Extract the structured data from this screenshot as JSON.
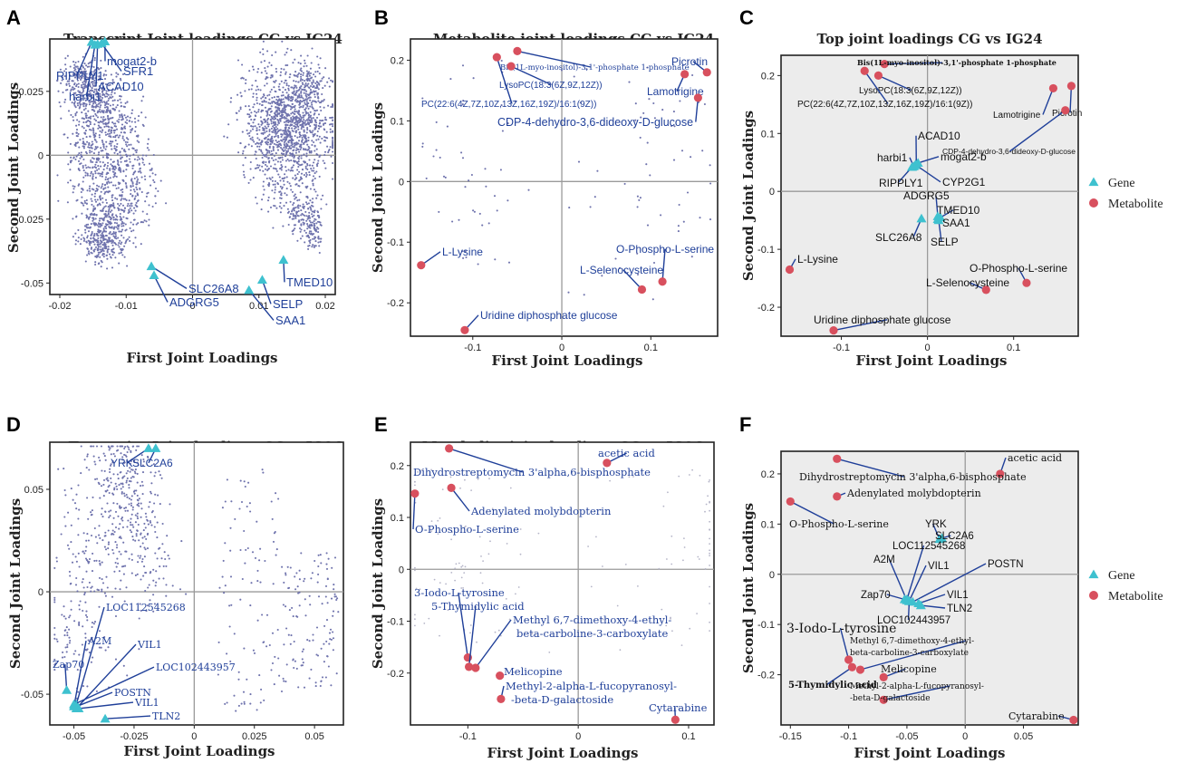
{
  "colors": {
    "gene": "#3ec1cf",
    "metabolite": "#d8505e",
    "scatter": "#6f73ad",
    "faint": "#b5b5c8",
    "leader": "#1f3f99",
    "panel_bg_top": "#ececec",
    "zero_line": "#9a9a9a"
  },
  "legend": {
    "gene": "Gene",
    "metabolite": "Metabolite"
  },
  "chart_data": [
    {
      "letter": "A",
      "type": "scatter",
      "title": "Transcript Joint loadings CG vs IG24",
      "xlabel": "First Joint Loadings",
      "ylabel": "Second Joint Loadings",
      "xlim": [
        -0.0215,
        0.0215
      ],
      "ylim": [
        -0.0545,
        0.0455
      ],
      "xticks": [
        -0.02,
        -0.01,
        0,
        0.01,
        0.02
      ],
      "xtick_labels": [
        "-0.02",
        "-0.01",
        "0",
        "0.01",
        "0.02"
      ],
      "yticks": [
        -0.05,
        -0.025,
        0,
        0.025
      ],
      "ytick_labels": [
        "-0.05",
        "-0.025",
        "0",
        "0.025"
      ],
      "background_cloud": {
        "count": 3200,
        "description": "two crescent clusters of gene loadings"
      },
      "highlights": [
        {
          "label": "mogat2-b",
          "kind": "gene",
          "x": -0.0132,
          "y": 0.0445
        },
        {
          "label": "SFR1",
          "kind": "gene",
          "x": -0.0137,
          "y": 0.0438
        },
        {
          "label": "RIPPLY1",
          "kind": "gene",
          "x": -0.0152,
          "y": 0.0443
        },
        {
          "label": "ACAD10",
          "kind": "gene",
          "x": -0.0143,
          "y": 0.0435
        },
        {
          "label": "harbi1",
          "kind": "gene",
          "x": -0.0147,
          "y": 0.0432
        },
        {
          "label": "SLC26A8",
          "kind": "gene",
          "x": -0.0062,
          "y": -0.0435
        },
        {
          "label": "ADGRG5",
          "kind": "gene",
          "x": -0.0058,
          "y": -0.047
        },
        {
          "label": "TMED10",
          "kind": "gene",
          "x": 0.0137,
          "y": -0.041
        },
        {
          "label": "SELP",
          "kind": "gene",
          "x": 0.0105,
          "y": -0.0488
        },
        {
          "label": "SAA1",
          "kind": "gene",
          "x": 0.0085,
          "y": -0.0528
        }
      ]
    },
    {
      "letter": "B",
      "type": "scatter",
      "title": "Metabolite joint loadings CG vs IG24",
      "xlabel": "First Joint Loadings",
      "ylabel": "Second Joint Loadings",
      "xlim": [
        -0.17,
        0.175
      ],
      "ylim": [
        -0.255,
        0.235
      ],
      "xticks": [
        -0.1,
        0,
        0.1
      ],
      "xtick_labels": [
        "-0.1",
        "0",
        "0.1"
      ],
      "yticks": [
        -0.2,
        -0.1,
        0,
        0.1,
        0.2
      ],
      "ytick_labels": [
        "-0.2",
        "-0.1",
        "0",
        "0.1",
        "0.2"
      ],
      "background_cloud": {
        "count": 110,
        "description": "sparse metabolite loadings"
      },
      "highlights": [
        {
          "label": "Bis(1L-myo-inositol)-3,1'-phosphate 1-phosphate",
          "kind": "metabolite",
          "x": -0.05,
          "y": 0.215
        },
        {
          "label": "LysoPC(18:3(6Z,9Z,12Z))",
          "kind": "metabolite",
          "x": -0.057,
          "y": 0.19
        },
        {
          "label": "PC(22:6(4Z,7Z,10Z,13Z,16Z,19Z)/16:1(9Z))",
          "kind": "metabolite",
          "x": -0.073,
          "y": 0.205
        },
        {
          "label": "Picrotin",
          "kind": "metabolite",
          "x": 0.163,
          "y": 0.18
        },
        {
          "label": "Lamotrigine",
          "kind": "metabolite",
          "x": 0.138,
          "y": 0.177
        },
        {
          "label": "CDP-4-dehydro-3,6-dideoxy-D-glucose",
          "kind": "metabolite",
          "x": 0.153,
          "y": 0.138
        },
        {
          "label": "L-Lysine",
          "kind": "metabolite",
          "x": -0.158,
          "y": -0.138
        },
        {
          "label": "O-Phospho-L-serine",
          "kind": "metabolite",
          "x": 0.113,
          "y": -0.165
        },
        {
          "label": "L-Selenocysteine",
          "kind": "metabolite",
          "x": 0.09,
          "y": -0.178
        },
        {
          "label": "Uridine diphosphate glucose",
          "kind": "metabolite",
          "x": -0.109,
          "y": -0.245
        }
      ]
    },
    {
      "letter": "C",
      "type": "scatter",
      "title": "Top joint loadings CG vs IG24",
      "xlabel": "First Joint Loadings",
      "ylabel": "Second Joint Loadings",
      "xlim": [
        -0.17,
        0.175
      ],
      "ylim": [
        -0.25,
        0.235
      ],
      "xticks": [
        -0.1,
        0,
        0.1
      ],
      "xtick_labels": [
        "-0.1",
        "0",
        "0.1"
      ],
      "yticks": [
        -0.2,
        -0.1,
        0,
        0.1,
        0.2
      ],
      "ytick_labels": [
        "-0.2",
        "-0.1",
        "0",
        "0.1",
        "0.2"
      ],
      "highlights": [
        {
          "label": "Bis(1L-myo-inositol)-3,1'-phosphate 1-phosphate",
          "kind": "metabolite",
          "x": -0.05,
          "y": 0.22
        },
        {
          "label": "LysoPC(18:3(6Z,9Z,12Z))",
          "kind": "metabolite",
          "x": -0.057,
          "y": 0.2
        },
        {
          "label": "PC(22:6(4Z,7Z,10Z,13Z,16Z,19Z)/16:1(9Z))",
          "kind": "metabolite",
          "x": -0.073,
          "y": 0.208
        },
        {
          "label": "Lamotrigine",
          "kind": "metabolite",
          "x": 0.146,
          "y": 0.178
        },
        {
          "label": "Picrotin",
          "kind": "metabolite",
          "x": 0.167,
          "y": 0.182
        },
        {
          "label": "CDP-4-dehydro-3,6-dideoxy-D-glucose",
          "kind": "metabolite",
          "x": 0.16,
          "y": 0.14
        },
        {
          "label": "ACAD10",
          "kind": "gene",
          "x": -0.013,
          "y": 0.045
        },
        {
          "label": "mogat2-b",
          "kind": "gene",
          "x": -0.011,
          "y": 0.049
        },
        {
          "label": "harbi1",
          "kind": "gene",
          "x": -0.016,
          "y": 0.043
        },
        {
          "label": "CYP2G1",
          "kind": "gene",
          "x": -0.014,
          "y": 0.046
        },
        {
          "label": "RIPPLY1",
          "kind": "gene",
          "x": -0.018,
          "y": 0.042
        },
        {
          "label": "ADGRG5",
          "kind": "gene",
          "x": 0.012,
          "y": -0.043
        },
        {
          "label": "TMED10",
          "kind": "gene",
          "x": 0.015,
          "y": -0.045
        },
        {
          "label": "SAA1",
          "kind": "gene",
          "x": 0.012,
          "y": -0.048
        },
        {
          "label": "SLC26A8",
          "kind": "gene",
          "x": -0.007,
          "y": -0.047
        },
        {
          "label": "SELP",
          "kind": "gene",
          "x": 0.013,
          "y": -0.05
        },
        {
          "label": "L-Lysine",
          "kind": "metabolite",
          "x": -0.16,
          "y": -0.135
        },
        {
          "label": "O-Phospho-L-serine",
          "kind": "metabolite",
          "x": 0.115,
          "y": -0.158
        },
        {
          "label": "L-Selenocysteine",
          "kind": "metabolite",
          "x": 0.068,
          "y": -0.17
        },
        {
          "label": "Uridine diphosphate glucose",
          "kind": "metabolite",
          "x": -0.109,
          "y": -0.24
        }
      ]
    },
    {
      "letter": "D",
      "type": "scatter",
      "title": "Transcript Joint loadings CGvs IG96",
      "xlabel": "First Joint Loadings",
      "ylabel": "Second Joint Loadings",
      "xlim": [
        -0.06,
        0.062
      ],
      "ylim": [
        -0.065,
        0.073
      ],
      "xticks": [
        -0.05,
        -0.025,
        0,
        0.025,
        0.05
      ],
      "xtick_labels": [
        "-0.05",
        "-0.025",
        "0",
        "0.025",
        "0.05"
      ],
      "yticks": [
        -0.05,
        0,
        0.05
      ],
      "ytick_labels": [
        "-0.05",
        "0",
        "0.05"
      ],
      "background_cloud": {
        "count": 800,
        "description": "gene loadings, arch on left, sparse cluster on right"
      },
      "highlights": [
        {
          "label": "YRK",
          "kind": "gene",
          "x": -0.019,
          "y": 0.07
        },
        {
          "label": "SLC2A6",
          "kind": "gene",
          "x": -0.016,
          "y": 0.07
        },
        {
          "label": "LOC112545268",
          "kind": "gene",
          "x": -0.049,
          "y": -0.055
        },
        {
          "label": "A2M",
          "kind": "gene",
          "x": -0.05,
          "y": -0.056
        },
        {
          "label": "VIL1",
          "kind": "gene",
          "x": -0.049,
          "y": -0.057
        },
        {
          "label": "LOC102443957",
          "kind": "gene",
          "x": -0.05,
          "y": -0.055
        },
        {
          "label": "Zap70",
          "kind": "gene",
          "x": -0.053,
          "y": -0.048
        },
        {
          "label": "POSTN",
          "kind": "gene",
          "x": -0.049,
          "y": -0.056
        },
        {
          "label": "VIL1",
          "kind": "gene",
          "x": -0.048,
          "y": -0.057
        },
        {
          "label": "TLN2",
          "kind": "gene",
          "x": -0.037,
          "y": -0.062
        }
      ]
    },
    {
      "letter": "E",
      "type": "scatter",
      "title": "Metabolite joint loadings CG vs IG96",
      "xlabel": "First Joint Loadings",
      "ylabel": "Second Joint Loadings",
      "xlim": [
        -0.152,
        0.123
      ],
      "ylim": [
        -0.3,
        0.245
      ],
      "xticks": [
        -0.1,
        0,
        0.1
      ],
      "xtick_labels": [
        "-0.1",
        "0",
        "0.1"
      ],
      "yticks": [
        -0.2,
        -0.1,
        0,
        0.1,
        0.2
      ],
      "ytick_labels": [
        "-0.2",
        "-0.1",
        "0",
        "0.1",
        "0.2"
      ],
      "background_cloud": {
        "count": 140,
        "description": "faint metabolite loadings"
      },
      "highlights": [
        {
          "label": "acetic acid",
          "kind": "metabolite",
          "x": 0.026,
          "y": 0.205
        },
        {
          "label": "Dihydrostreptomycin 3'alpha,6-bisphosphate",
          "kind": "metabolite",
          "x": -0.117,
          "y": 0.233
        },
        {
          "label": "Adenylated molybdopterin",
          "kind": "metabolite",
          "x": -0.115,
          "y": 0.157
        },
        {
          "label": "O-Phospho-L-serine",
          "kind": "metabolite",
          "x": -0.148,
          "y": 0.146
        },
        {
          "label": "3-Iodo-L-tyrosine",
          "kind": "metabolite",
          "x": -0.1,
          "y": -0.17
        },
        {
          "label": "5-Thymidylic acid",
          "kind": "metabolite",
          "x": -0.099,
          "y": -0.188
        },
        {
          "label": "Methyl 6,7-dimethoxy-4-ethyl-beta-carboline-3-carboxylate",
          "kind": "metabolite",
          "x": -0.093,
          "y": -0.19
        },
        {
          "label": "Melicopine",
          "kind": "metabolite",
          "x": -0.071,
          "y": -0.205
        },
        {
          "label": "Methyl-2-alpha-L-fucopyranosyl-beta-D-galactoside",
          "kind": "metabolite",
          "x": -0.07,
          "y": -0.25
        },
        {
          "label": "Cytarabine",
          "kind": "metabolite",
          "x": 0.088,
          "y": -0.29
        }
      ]
    },
    {
      "letter": "F",
      "type": "scatter",
      "title": "Top joint loadings CG vs IG96",
      "xlabel": "First Joint Loadings",
      "ylabel": "Second Joint Loadings",
      "xlim": [
        -0.158,
        0.097
      ],
      "ylim": [
        -0.3,
        0.245
      ],
      "xticks": [
        -0.15,
        -0.1,
        -0.05,
        0,
        0.05
      ],
      "xtick_labels": [
        "-0.15",
        "-0.1",
        "-0.05",
        "0",
        "0.05"
      ],
      "yticks": [
        -0.2,
        -0.1,
        0,
        0.1,
        0.2
      ],
      "ytick_labels": [
        "-0.2",
        "-0.1",
        "0",
        "0.1",
        "0.2"
      ],
      "highlights": [
        {
          "label": "acetic acid",
          "kind": "metabolite",
          "x": 0.03,
          "y": 0.2
        },
        {
          "label": "Dihydrostreptomycin 3'alpha,6-bisphosphate",
          "kind": "metabolite",
          "x": -0.11,
          "y": 0.23
        },
        {
          "label": "Adenylated molybdopterin",
          "kind": "metabolite",
          "x": -0.11,
          "y": 0.155
        },
        {
          "label": "O-Phospho-L-serine",
          "kind": "metabolite",
          "x": -0.15,
          "y": 0.145
        },
        {
          "label": "YRK",
          "kind": "gene",
          "x": -0.022,
          "y": 0.07
        },
        {
          "label": "SLC2A6",
          "kind": "gene",
          "x": -0.02,
          "y": 0.072
        },
        {
          "label": "LOC112545268",
          "kind": "gene",
          "x": -0.05,
          "y": -0.05
        },
        {
          "label": "A2M",
          "kind": "gene",
          "x": -0.05,
          "y": -0.052
        },
        {
          "label": "VIL1",
          "kind": "gene",
          "x": -0.048,
          "y": -0.053
        },
        {
          "label": "POSTN",
          "kind": "gene",
          "x": -0.045,
          "y": -0.055
        },
        {
          "label": "Zap70",
          "kind": "gene",
          "x": -0.052,
          "y": -0.05
        },
        {
          "label": "VIL1",
          "kind": "gene",
          "x": -0.04,
          "y": -0.058
        },
        {
          "label": "TLN2",
          "kind": "gene",
          "x": -0.038,
          "y": -0.062
        },
        {
          "label": "LOC102443957",
          "kind": "gene",
          "x": -0.048,
          "y": -0.054
        },
        {
          "label": "3-Iodo-L-tyrosine",
          "kind": "metabolite",
          "x": -0.1,
          "y": -0.17
        },
        {
          "label": "Methyl 6,7-dimethoxy-4-ethyl-beta-carboline-3-carboxylate",
          "kind": "metabolite",
          "x": -0.09,
          "y": -0.19
        },
        {
          "label": "5-Thymidylic acid",
          "kind": "metabolite",
          "x": -0.097,
          "y": -0.185
        },
        {
          "label": "Melicopine",
          "kind": "metabolite",
          "x": -0.07,
          "y": -0.205
        },
        {
          "label": "Methyl-2-alpha-L-fucopyranosyl-beta-D-galactoside",
          "kind": "metabolite",
          "x": -0.07,
          "y": -0.25
        },
        {
          "label": "Cytarabine",
          "kind": "metabolite",
          "x": 0.093,
          "y": -0.29
        }
      ]
    }
  ]
}
